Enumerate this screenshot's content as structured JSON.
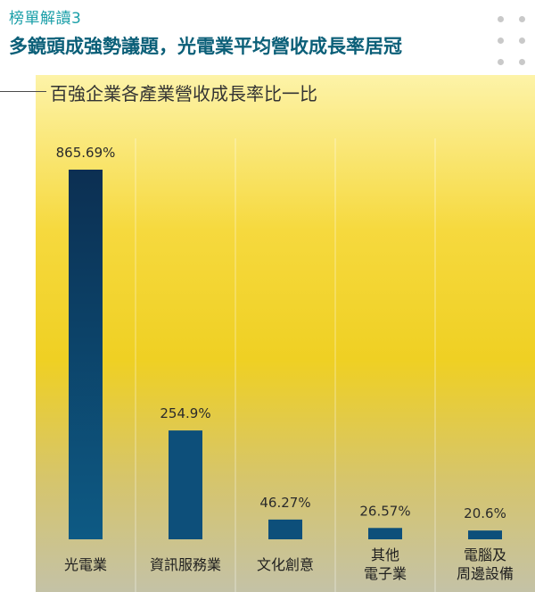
{
  "kicker": "榜單解讀3",
  "headline": "多鏡頭成強勢議題，光電業平均營收成長率居冠",
  "chart_data": {
    "type": "bar",
    "title": "百強企業各產業營收成長率比一比",
    "categories": [
      "光電業",
      "資訊服務業",
      "文化創意",
      "其他\n電子業",
      "電腦及\n周邊設備"
    ],
    "values": [
      865.69,
      254.9,
      46.27,
      26.57,
      20.6
    ],
    "value_labels": [
      "865.69%",
      "254.9%",
      "46.27%",
      "26.57%",
      "20.6%"
    ],
    "unit": "%",
    "ylim": [
      0,
      865.69
    ],
    "grid": "vertical separators",
    "colors": {
      "bar": "#0d4f7a",
      "bar_top": "#0c2f52",
      "headline": "#0b5f78",
      "kicker": "#1a9fa8"
    }
  }
}
